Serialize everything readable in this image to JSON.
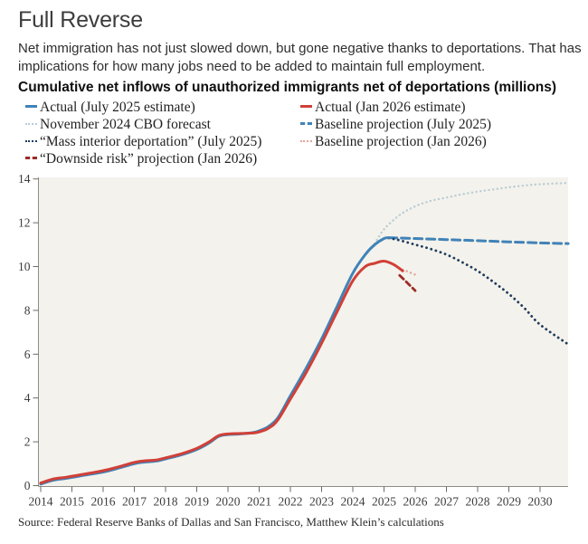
{
  "header": {
    "title": "Full Reverse",
    "subtitle": "Net immigration has not just slowed down, but gone negative thanks to deportations. That has implications for how many jobs need to be added to maintain full employment.",
    "chart_label": "Cumulative net inflows of unauthorized immigrants net of deportations (millions)"
  },
  "footer": {
    "source": "Source: Federal Reserve Banks of Dallas and San Francisco, Matthew Klein’s calculations"
  },
  "colors": {
    "blue": "#4083b8",
    "red": "#d04038",
    "light_blue_dotted": "#b9cdd5",
    "navy_dotted": "#1e3c5c",
    "pink_dotted": "#e5a39f",
    "dark_red_dashed": "#9c2c26",
    "plot_background": "#f4f2ec",
    "axis_line": "#8f8c85",
    "axis_text": "#3c3c3c"
  },
  "chart_data": {
    "type": "line",
    "title": "Cumulative net inflows of unauthorized immigrants net of deportations (millions)",
    "xlabel": "",
    "ylabel": "millions",
    "xlim": [
      2013.9,
      2030.95
    ],
    "ylim": [
      0,
      14
    ],
    "grid": false,
    "legend_position": "top",
    "x_ticks": [
      "2014",
      "2015",
      "2016",
      "2017",
      "2018",
      "2019",
      "2020",
      "2021",
      "2022",
      "2023",
      "2024",
      "2025",
      "2026",
      "2027",
      "2028",
      "2029",
      "2030"
    ],
    "y_ticks": [
      "0",
      "2",
      "4",
      "6",
      "8",
      "10",
      "12",
      "14"
    ],
    "series": [
      {
        "id": "actual_jul2025",
        "name": "Actual (July 2025 estimate)",
        "style": "solid",
        "color": "#4083b8",
        "width": 3,
        "z": 6,
        "points": [
          [
            2014,
            0.07
          ],
          [
            2014.4,
            0.25
          ],
          [
            2014.8,
            0.33
          ],
          [
            2015.3,
            0.45
          ],
          [
            2016,
            0.62
          ],
          [
            2016.5,
            0.8
          ],
          [
            2017,
            1.0
          ],
          [
            2017.3,
            1.07
          ],
          [
            2017.7,
            1.12
          ],
          [
            2018,
            1.22
          ],
          [
            2018.5,
            1.4
          ],
          [
            2019,
            1.65
          ],
          [
            2019.4,
            1.95
          ],
          [
            2019.7,
            2.25
          ],
          [
            2020,
            2.33
          ],
          [
            2020.4,
            2.36
          ],
          [
            2020.8,
            2.42
          ],
          [
            2021,
            2.5
          ],
          [
            2021.3,
            2.7
          ],
          [
            2021.6,
            3.1
          ],
          [
            2022,
            4.1
          ],
          [
            2022.5,
            5.35
          ],
          [
            2023,
            6.7
          ],
          [
            2023.5,
            8.2
          ],
          [
            2024,
            9.7
          ],
          [
            2024.4,
            10.55
          ],
          [
            2024.7,
            11.0
          ],
          [
            2025,
            11.28
          ],
          [
            2025.15,
            11.32
          ]
        ]
      },
      {
        "id": "cbo_nov2024",
        "name": "November 2024 CBO forecast",
        "style": "dotted",
        "color": "#b9cdd5",
        "width": 2.4,
        "z": 1,
        "points": [
          [
            2024.7,
            11.05
          ],
          [
            2025,
            11.7
          ],
          [
            2025.5,
            12.35
          ],
          [
            2026,
            12.75
          ],
          [
            2026.5,
            13.0
          ],
          [
            2027,
            13.15
          ],
          [
            2027.5,
            13.3
          ],
          [
            2028,
            13.42
          ],
          [
            2028.5,
            13.52
          ],
          [
            2029,
            13.62
          ],
          [
            2029.5,
            13.7
          ],
          [
            2030,
            13.76
          ],
          [
            2030.9,
            13.82
          ]
        ]
      },
      {
        "id": "mass_deportation_jul2025",
        "name": "“Mass interior deportation” (July 2025)",
        "style": "dotted",
        "color": "#1e3c5c",
        "width": 2.8,
        "z": 3,
        "points": [
          [
            2025.15,
            11.3
          ],
          [
            2025.5,
            11.2
          ],
          [
            2026,
            11.0
          ],
          [
            2026.5,
            10.8
          ],
          [
            2027,
            10.55
          ],
          [
            2027.5,
            10.2
          ],
          [
            2028,
            9.8
          ],
          [
            2028.5,
            9.3
          ],
          [
            2029,
            8.75
          ],
          [
            2029.5,
            8.1
          ],
          [
            2030,
            7.35
          ],
          [
            2030.9,
            6.45
          ]
        ]
      },
      {
        "id": "downside_jan2026",
        "name": "“Downside risk” projection (Jan 2026)",
        "style": "dashed",
        "color": "#9c2c26",
        "width": 2.8,
        "z": 5,
        "points": [
          [
            2025.5,
            9.6
          ],
          [
            2025.75,
            9.25
          ],
          [
            2026,
            8.9
          ]
        ]
      },
      {
        "id": "actual_jan2026",
        "name": "Actual (Jan 2026 estimate)",
        "style": "solid",
        "color": "#d04038",
        "width": 3,
        "z": 7,
        "points": [
          [
            2014,
            0.12
          ],
          [
            2014.4,
            0.3
          ],
          [
            2014.8,
            0.38
          ],
          [
            2015.3,
            0.5
          ],
          [
            2016,
            0.68
          ],
          [
            2016.5,
            0.86
          ],
          [
            2017,
            1.06
          ],
          [
            2017.3,
            1.13
          ],
          [
            2017.7,
            1.17
          ],
          [
            2018,
            1.27
          ],
          [
            2018.5,
            1.45
          ],
          [
            2019,
            1.7
          ],
          [
            2019.4,
            2.0
          ],
          [
            2019.7,
            2.28
          ],
          [
            2020,
            2.36
          ],
          [
            2020.4,
            2.38
          ],
          [
            2020.8,
            2.4
          ],
          [
            2021,
            2.45
          ],
          [
            2021.3,
            2.62
          ],
          [
            2021.6,
            3.0
          ],
          [
            2022,
            3.95
          ],
          [
            2022.5,
            5.15
          ],
          [
            2023,
            6.5
          ],
          [
            2023.5,
            7.95
          ],
          [
            2024,
            9.35
          ],
          [
            2024.4,
            10.0
          ],
          [
            2024.7,
            10.15
          ],
          [
            2025,
            10.25
          ],
          [
            2025.3,
            10.1
          ],
          [
            2025.6,
            9.8
          ]
        ]
      },
      {
        "id": "baseline_jul2025",
        "name": "Baseline projection (July 2025)",
        "style": "dashed",
        "color": "#4083b8",
        "width": 3,
        "z": 2,
        "points": [
          [
            2025.15,
            11.32
          ],
          [
            2026,
            11.28
          ],
          [
            2027,
            11.23
          ],
          [
            2028,
            11.18
          ],
          [
            2029,
            11.13
          ],
          [
            2030,
            11.08
          ],
          [
            2030.9,
            11.05
          ]
        ]
      },
      {
        "id": "baseline_jan2026",
        "name": "Baseline projection (Jan 2026)",
        "style": "dotted",
        "color": "#e5a39f",
        "width": 2.4,
        "z": 4,
        "points": [
          [
            2025.6,
            9.85
          ],
          [
            2025.8,
            9.75
          ],
          [
            2026.05,
            9.6
          ]
        ]
      }
    ],
    "legend_columns": {
      "left": [
        "actual_jul2025",
        "cbo_nov2024",
        "mass_deportation_jul2025",
        "downside_jan2026"
      ],
      "right": [
        "actual_jan2026",
        "baseline_jul2025",
        "baseline_jan2026"
      ]
    }
  }
}
